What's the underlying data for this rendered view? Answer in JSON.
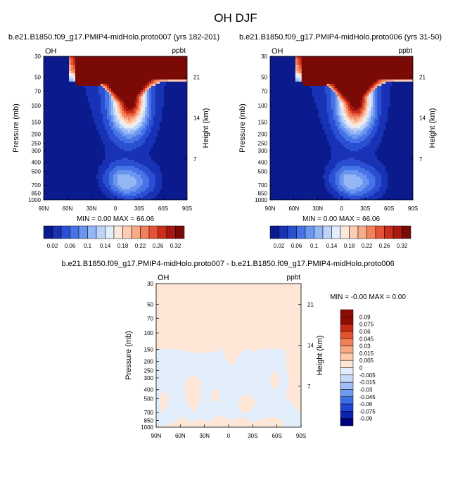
{
  "figure": {
    "title": "OH DJF"
  },
  "colors": {
    "scale": [
      "#0b1a8c",
      "#1832b6",
      "#2b4fd2",
      "#4673e6",
      "#6a96f0",
      "#94b6f5",
      "#bdd3fa",
      "#e1ecfd",
      "#fde8dc",
      "#fccdb4",
      "#f9ab88",
      "#f2805c",
      "#e55436",
      "#cc2e1c",
      "#a81810",
      "#7a0a05"
    ],
    "diff_scale": [
      "#000080",
      "#0a23b4",
      "#1e46d2",
      "#3c6ee6",
      "#6e9af0",
      "#a0bef5",
      "#c8dafa",
      "#e2edfc",
      "#fde6d6",
      "#fcc9ad",
      "#f9a882",
      "#f37f58",
      "#e2502f",
      "#c52a14",
      "#8b0d03"
    ]
  },
  "chart_data": [
    {
      "type": "heatmap",
      "name": "panel-1",
      "title": "b.e21.B1850.f09_g17.PMIP4-midHolo.proto007 (yrs 182-201)",
      "left_label": "OH",
      "right_label": "ppbt",
      "xlabel": "",
      "ylabel": "Pressure (mb)",
      "ylabel_right": "Height (km)",
      "x_ticks": [
        "90N",
        "60N",
        "30N",
        "0",
        "30S",
        "60S",
        "90S"
      ],
      "y_ticks": [
        "30",
        "50",
        "70",
        "100",
        "150",
        "200",
        "250",
        "300",
        "400",
        "500",
        "700",
        "850",
        "1000"
      ],
      "height_ticks": [
        "21",
        "14",
        "7"
      ],
      "min_max": "MIN =  0.00  MAX =  66.06",
      "ylim": [
        1000,
        30
      ],
      "xlim": [
        90,
        -90
      ],
      "y_scale": "log",
      "colorbar": {
        "labels": [
          "0.02",
          "0.06",
          "0.1",
          "0.14",
          "0.18",
          "0.22",
          "0.26",
          "0.32"
        ],
        "levels": 16
      }
    },
    {
      "type": "heatmap",
      "name": "panel-2",
      "title": "b.e21.B1850.f09_g17.PMIP4-midHolo.proto006 (yrs 31-50)",
      "left_label": "OH",
      "right_label": "ppbt",
      "xlabel": "",
      "ylabel": "Pressure (mb)",
      "ylabel_right": "Height (km)",
      "x_ticks": [
        "90N",
        "60N",
        "30N",
        "0",
        "30S",
        "60S",
        "90S"
      ],
      "y_ticks": [
        "30",
        "50",
        "70",
        "100",
        "150",
        "200",
        "250",
        "300",
        "400",
        "500",
        "700",
        "850",
        "1000"
      ],
      "height_ticks": [
        "21",
        "14",
        "7"
      ],
      "min_max": "MIN =  0.00  MAX =  66.06",
      "ylim": [
        1000,
        30
      ],
      "xlim": [
        90,
        -90
      ],
      "y_scale": "log",
      "colorbar": {
        "labels": [
          "0.02",
          "0.06",
          "0.1",
          "0.14",
          "0.18",
          "0.22",
          "0.26",
          "0.32"
        ],
        "levels": 16
      }
    },
    {
      "type": "heatmap",
      "name": "difference",
      "title": "b.e21.B1850.f09_g17.PMIP4-midHolo.proto007 - b.e21.B1850.f09_g17.PMIP4-midHolo.proto006",
      "left_label": "OH",
      "right_label": "ppbt",
      "xlabel": "",
      "ylabel": "Pressure (mb)",
      "ylabel_right": "Height (km)",
      "x_ticks": [
        "90N",
        "60N",
        "30N",
        "0",
        "30S",
        "60S",
        "90S"
      ],
      "y_ticks": [
        "30",
        "50",
        "70",
        "100",
        "150",
        "200",
        "250",
        "300",
        "400",
        "500",
        "700",
        "850",
        "1000"
      ],
      "height_ticks": [
        "21",
        "14",
        "7"
      ],
      "min_max": "MIN = -0.00  MAX =   0.00",
      "ylim": [
        1000,
        30
      ],
      "xlim": [
        90,
        -90
      ],
      "y_scale": "log",
      "colorbar": {
        "labels": [
          "0.09",
          "0.075",
          "0.06",
          "0.045",
          "0.03",
          "0.015",
          "0.005",
          "0",
          "-0.005",
          "-0.015",
          "-0.03",
          "-0.045",
          "-0.06",
          "-0.075",
          "-0.09"
        ]
      }
    }
  ]
}
